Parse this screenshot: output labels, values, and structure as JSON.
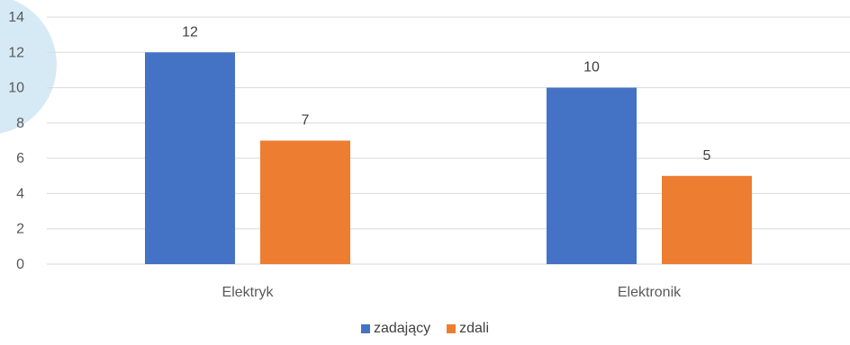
{
  "chart_data": {
    "type": "bar",
    "categories": [
      "Elektryk",
      "Elektronik"
    ],
    "series": [
      {
        "name": "zadający",
        "values": [
          12,
          10
        ],
        "color": "#4472C4"
      },
      {
        "name": "zdali",
        "values": [
          7,
          5
        ],
        "color": "#ED7D31"
      }
    ],
    "ylim": [
      0,
      14
    ],
    "yticks": [
      0,
      2,
      4,
      6,
      8,
      10,
      12,
      14
    ],
    "grid": true,
    "data_labels": true,
    "legend_position": "bottom",
    "title": "",
    "xlabel": "",
    "ylabel": ""
  },
  "colors": {
    "gridline": "#D9D9D9",
    "axis_text": "#595959",
    "label_text": "#404040",
    "decor_circle": "#D6EAF6"
  }
}
